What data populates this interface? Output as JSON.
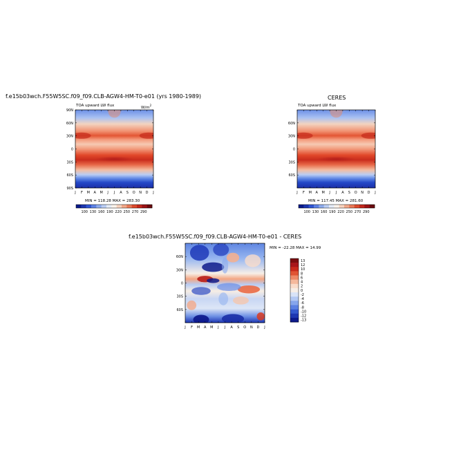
{
  "panel_left": {
    "title": "f.e15b03wch.F55W5SC.f09_f09.CLB-AGW4-HM-T0-e01 (yrs 1980-1989)",
    "subtitle": "TOA upward LW flux",
    "units": "W/m",
    "units_sup": "2",
    "minmax": "MIN = 118.28  MAX = 283.30"
  },
  "panel_right": {
    "title": "CERES",
    "subtitle": "TOA upward LW flux",
    "minmax": "MIN = 117.45  MAX = 281.60"
  },
  "panel_diff": {
    "title": "f.e15b03wch.F55W5SC.f09_f09.CLB-AGW4-HM-T0-e01 - CERES",
    "minmax": "MIN = -22.28  MAX =  14.99"
  },
  "colors": {
    "blue_dark": "#0d1a9c",
    "blue_mid": "#3c6fe6",
    "blue_light": "#b7cdf5",
    "white": "#fbf7ef",
    "orange_light": "#f5c3a2",
    "red_mid": "#e8502e",
    "red_dark": "#7a0d10"
  },
  "chart_data": [
    {
      "type": "heatmap",
      "panel": "model",
      "x": [
        "J",
        "F",
        "M",
        "A",
        "M",
        "J",
        "J",
        "A",
        "S",
        "O",
        "N",
        "D",
        "J"
      ],
      "y_ticks": [
        "90N",
        "60N",
        "30N",
        "0",
        "30S",
        "60S",
        "90S"
      ],
      "z_min": 118.28,
      "z_max": 283.3,
      "colorbar": [
        "100",
        "130",
        "160",
        "190",
        "220",
        "250",
        "270",
        "290"
      ]
    },
    {
      "type": "heatmap",
      "panel": "observations",
      "x": [
        "J",
        "F",
        "M",
        "A",
        "M",
        "J",
        "J",
        "A",
        "S",
        "O",
        "N",
        "D",
        "J"
      ],
      "y_ticks": [
        "60N",
        "30N",
        "0",
        "30S",
        "60S"
      ],
      "z_min": 117.45,
      "z_max": 281.6,
      "colorbar": [
        "100",
        "130",
        "160",
        "190",
        "220",
        "250",
        "270",
        "290"
      ]
    },
    {
      "type": "heatmap",
      "panel": "difference",
      "x": [
        "J",
        "F",
        "M",
        "A",
        "M",
        "J",
        "J",
        "A",
        "S",
        "O",
        "N",
        "D",
        "J"
      ],
      "y_ticks": [
        "60N",
        "30N",
        "0",
        "30S",
        "60S"
      ],
      "z_min": -22.28,
      "z_max": 14.99,
      "colorbar": [
        "13",
        "12",
        "10",
        "8",
        "6",
        "4",
        "2",
        "0",
        "-2",
        "-4",
        "-6",
        "-8",
        "-10",
        "-12",
        "-13"
      ]
    }
  ]
}
